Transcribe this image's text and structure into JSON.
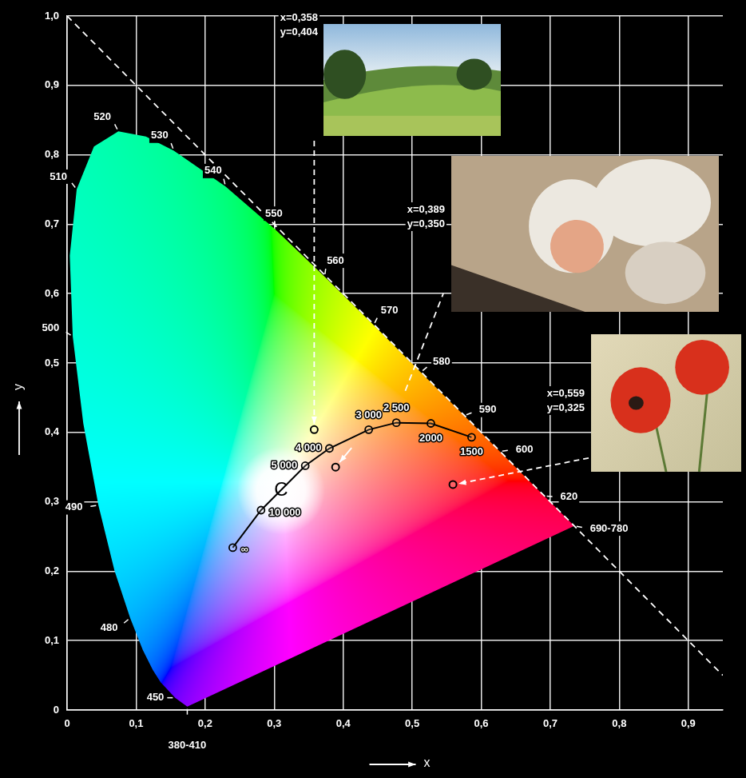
{
  "chart_data": {
    "type": "scatter",
    "x_label": "x",
    "y_label": "y",
    "xlim": [
      0,
      0.95
    ],
    "ylim": [
      0,
      1
    ],
    "xticks": [
      0,
      {
        "value": 0.1,
        "label": "0,1"
      },
      {
        "value": 0.2,
        "label": "0,2"
      },
      {
        "value": 0.3,
        "label": "0,3"
      },
      {
        "value": 0.4,
        "label": "0,4"
      },
      {
        "value": 0.5,
        "label": "0,5"
      },
      {
        "value": 0.6,
        "label": "0,6"
      },
      {
        "value": 0.7,
        "label": "0,7"
      },
      {
        "value": 0.8,
        "label": "0,8"
      },
      {
        "value": 0.9,
        "label": "0,9"
      }
    ],
    "yticks": [
      0,
      {
        "value": 0.1,
        "label": "0,1"
      },
      {
        "value": 0.2,
        "label": "0,2"
      },
      {
        "value": 0.3,
        "label": "0,3"
      },
      {
        "value": 0.4,
        "label": "0,4"
      },
      {
        "value": 0.5,
        "label": "0,5"
      },
      {
        "value": 0.6,
        "label": "0,6"
      },
      {
        "value": 0.7,
        "label": "0,7"
      },
      {
        "value": 0.8,
        "label": "0,8"
      },
      {
        "value": 0.9,
        "label": "0,9"
      },
      {
        "value": 1,
        "label": "1,0"
      }
    ],
    "grid": true,
    "spectral_locus": {
      "labels": [
        "380-410",
        "450",
        null,
        null,
        null,
        "480",
        null,
        "490",
        null,
        "500",
        null,
        "510",
        null,
        "520",
        null,
        "530",
        "540",
        "550",
        "560",
        "570",
        "580",
        "590",
        "600",
        "620",
        "690-780"
      ],
      "x": [
        0.1741,
        0.1566,
        0.1355,
        0.1241,
        0.1096,
        0.0913,
        0.0687,
        0.0454,
        0.0235,
        0.0082,
        0.0039,
        0.0139,
        0.0389,
        0.0743,
        0.1142,
        0.1547,
        0.2296,
        0.3016,
        0.3731,
        0.4441,
        0.5125,
        0.5752,
        0.627,
        0.6915,
        0.7347
      ],
      "y": [
        0.005,
        0.0177,
        0.0399,
        0.0578,
        0.0868,
        0.1327,
        0.2007,
        0.295,
        0.4127,
        0.5384,
        0.6548,
        0.7502,
        0.812,
        0.8338,
        0.8262,
        0.8059,
        0.7543,
        0.6923,
        0.6245,
        0.5547,
        0.4866,
        0.4242,
        0.3725,
        0.3083,
        0.2653
      ]
    },
    "planckian_locus": {
      "labels": [
        "∞",
        "10 000",
        "5 000",
        "4 000",
        "3 000",
        "2 500",
        "2000",
        "1500"
      ],
      "x": [
        0.24,
        0.281,
        0.345,
        0.38,
        0.437,
        0.477,
        0.527,
        0.586
      ],
      "y": [
        0.234,
        0.288,
        0.352,
        0.377,
        0.404,
        0.414,
        0.413,
        0.393
      ],
      "color": "#000000",
      "marker": "circle"
    },
    "samples": [
      {
        "x": 0.358,
        "y": 0.404,
        "label": [
          "x=0,358",
          "y=0,404"
        ],
        "marker": "circle"
      },
      {
        "x": 0.389,
        "y": 0.35,
        "label": [
          "x=0,389",
          "y=0,350"
        ],
        "marker": "circle"
      },
      {
        "x": 0.559,
        "y": 0.325,
        "label": [
          "x=0,559",
          "y=0,325"
        ],
        "marker": "circle"
      }
    ],
    "annotations": [
      {
        "x": 0.3101,
        "y": 0.3162,
        "text": "C"
      }
    ],
    "dashed_lines": [
      {
        "x": [
          0,
          0.95
        ],
        "y": [
          1,
          0.05
        ],
        "color": "#ffffff",
        "line_style": "dashed"
      },
      {
        "x": [
          0.49,
          0.545
        ],
        "y": [
          0.46,
          0.6
        ],
        "color": "#ffffff",
        "line_style": "dashed"
      }
    ]
  }
}
